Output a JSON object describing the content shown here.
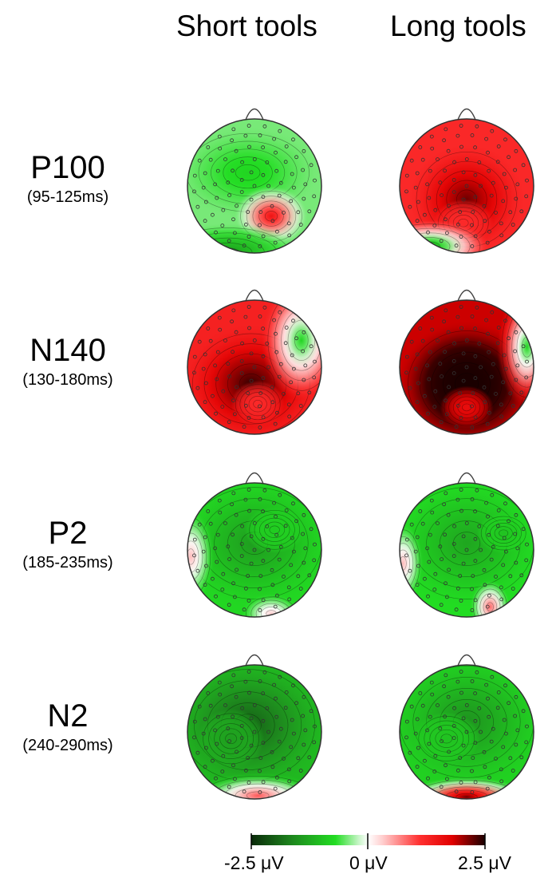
{
  "columns": [
    "Short tools",
    "Long tools"
  ],
  "rows": [
    {
      "name": "P100",
      "range": "(95-125ms)"
    },
    {
      "name": "N140",
      "range": "(130-180ms)"
    },
    {
      "name": "P2",
      "range": "(185-235ms)"
    },
    {
      "name": "N2",
      "range": "(240-290ms)"
    }
  ],
  "colorbar": {
    "min_label": "-2.5 μV",
    "mid_label": "0 μV",
    "max_label": "2.5 μV",
    "colors": [
      "#0a2a0a",
      "#1e8a1e",
      "#22dd22",
      "#c8f5c8",
      "#ffffff",
      "#ffd0d0",
      "#ff3030",
      "#e00000",
      "#1a0000"
    ]
  },
  "topomaps": [
    [
      {
        "blobs": [
          {
            "v": -0.8
          },
          {
            "v": 1.5
          },
          {
            "v": -1.4
          }
        ]
      },
      {
        "blobs": [
          {
            "v": 2.2
          },
          {
            "v": 1.2
          },
          {
            "v": -1.2
          }
        ]
      }
    ],
    [
      {
        "blobs": [
          {
            "v": 2.4
          },
          {
            "v": 1.2
          },
          {
            "v": -0.8
          }
        ]
      },
      {
        "blobs": [
          {
            "v": 3.4
          },
          {
            "v": 1.6
          },
          {
            "v": -0.8
          }
        ]
      }
    ],
    [
      {
        "blobs": [
          {
            "v": -1.4
          },
          {
            "v": -0.9
          },
          {
            "v": 0.4
          },
          {
            "v": 0.3
          }
        ]
      },
      {
        "blobs": [
          {
            "v": -1.3
          },
          {
            "v": -1.0
          },
          {
            "v": 0.8
          },
          {
            "v": 0.4
          }
        ]
      }
    ],
    [
      {
        "blobs": [
          {
            "v": -2.0
          },
          {
            "v": -1.4
          },
          {
            "v": 0.9
          }
        ]
      },
      {
        "blobs": [
          {
            "v": -1.5
          },
          {
            "v": -1.0
          },
          {
            "v": 2.2
          }
        ]
      }
    ]
  ]
}
